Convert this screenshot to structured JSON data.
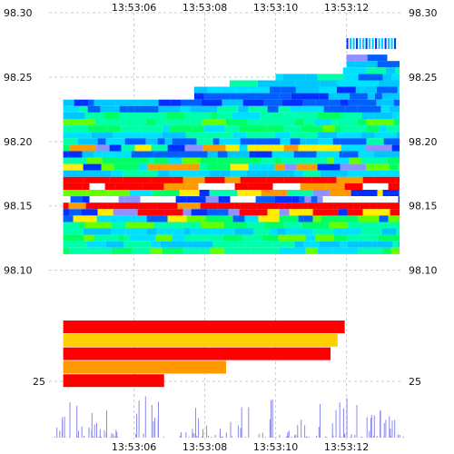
{
  "chart_data": {
    "type": "heatmap",
    "title": "",
    "xlabel": "",
    "ylabel": "",
    "x_ticks": [
      "13:53:06",
      "13:53:08",
      "13:53:10",
      "13:53:12"
    ],
    "x_tick_times_s": [
      6,
      8,
      10,
      12
    ],
    "xlim_s": [
      3.6,
      13.6
    ],
    "y_price_ticks": [
      "98.30",
      "98.25",
      "98.20",
      "98.15",
      "98.10"
    ],
    "y_price_values": [
      98.3,
      98.25,
      98.2,
      98.15,
      98.1
    ],
    "price_ylim": [
      98.08,
      98.3
    ],
    "y_bottom_panel_tick": "25",
    "heatmap_rows": [
      {
        "price": 98.265,
        "start_s": 12.0,
        "end_s": 13.5,
        "palette": "white-blue"
      },
      {
        "price": 98.26,
        "start_s": 12.0,
        "end_s": 13.5,
        "palette": "blue"
      },
      {
        "price": 98.255,
        "start_s": 11.9,
        "end_s": 13.5,
        "palette": "cyan-green"
      },
      {
        "price": 98.25,
        "start_s": 10.0,
        "end_s": 13.5,
        "palette": "blue-cyan"
      },
      {
        "price": 98.245,
        "start_s": 8.7,
        "end_s": 13.5,
        "palette": "cyan"
      },
      {
        "price": 98.24,
        "start_s": 7.7,
        "end_s": 13.5,
        "palette": "cyan-blue"
      },
      {
        "price": 98.235,
        "start_s": 7.7,
        "end_s": 13.5,
        "palette": "blue"
      },
      {
        "price": 98.23,
        "start_s": 4.0,
        "end_s": 13.5,
        "palette": "blue"
      },
      {
        "price": 98.225,
        "start_s": 4.0,
        "end_s": 13.5,
        "palette": "blue-cyan"
      },
      {
        "price": 98.22,
        "start_s": 4.0,
        "end_s": 13.5,
        "palette": "cyan-green"
      },
      {
        "price": 98.215,
        "start_s": 4.0,
        "end_s": 13.5,
        "palette": "green-cyan"
      },
      {
        "price": 98.21,
        "start_s": 4.0,
        "end_s": 13.5,
        "palette": "green"
      },
      {
        "price": 98.205,
        "start_s": 4.0,
        "end_s": 13.5,
        "palette": "cyan"
      },
      {
        "price": 98.2,
        "start_s": 4.0,
        "end_s": 13.5,
        "palette": "blue-cyan"
      },
      {
        "price": 98.195,
        "start_s": 4.0,
        "end_s": 13.5,
        "palette": "mixed"
      },
      {
        "price": 98.19,
        "start_s": 4.0,
        "end_s": 13.5,
        "palette": "cyan-blue"
      },
      {
        "price": 98.185,
        "start_s": 4.0,
        "end_s": 13.5,
        "palette": "green-cyan"
      },
      {
        "price": 98.18,
        "start_s": 4.0,
        "end_s": 13.5,
        "palette": "mixed"
      },
      {
        "price": 98.175,
        "start_s": 4.0,
        "end_s": 13.5,
        "palette": "cyan"
      },
      {
        "price": 98.17,
        "start_s": 4.0,
        "end_s": 13.5,
        "palette": "red"
      },
      {
        "price": 98.165,
        "start_s": 4.0,
        "end_s": 13.5,
        "palette": "red-white"
      },
      {
        "price": 98.16,
        "start_s": 4.0,
        "end_s": 13.5,
        "palette": "mixed"
      },
      {
        "price": 98.155,
        "start_s": 4.0,
        "end_s": 13.5,
        "palette": "white-blue"
      },
      {
        "price": 98.15,
        "start_s": 4.0,
        "end_s": 13.5,
        "palette": "red"
      },
      {
        "price": 98.145,
        "start_s": 4.0,
        "end_s": 13.5,
        "palette": "blue-red"
      },
      {
        "price": 98.14,
        "start_s": 4.0,
        "end_s": 13.5,
        "palette": "blue-green"
      },
      {
        "price": 98.135,
        "start_s": 4.0,
        "end_s": 13.5,
        "palette": "green-cyan"
      },
      {
        "price": 98.13,
        "start_s": 4.0,
        "end_s": 13.5,
        "palette": "cyan"
      },
      {
        "price": 98.125,
        "start_s": 4.0,
        "end_s": 13.5,
        "palette": "green"
      },
      {
        "price": 98.12,
        "start_s": 4.0,
        "end_s": 13.5,
        "palette": "cyan"
      },
      {
        "price": 98.115,
        "start_s": 4.0,
        "end_s": 13.5,
        "palette": "green-cyan"
      }
    ],
    "summary_bars": [
      {
        "start_s": 4.0,
        "end_s": 11.95,
        "color": "#ff0000"
      },
      {
        "start_s": 4.0,
        "end_s": 11.75,
        "color": "#ffd000"
      },
      {
        "start_s": 4.0,
        "end_s": 11.55,
        "color": "#ff0000"
      },
      {
        "start_s": 4.0,
        "end_s": 8.6,
        "color": "#ff9900"
      },
      {
        "start_s": 4.0,
        "end_s": 6.85,
        "color": "#ff0000"
      }
    ],
    "volume_ylim": [
      0,
      25
    ],
    "grid": true,
    "colors": {
      "blue": "#0030ff",
      "blue2": "#0060ff",
      "cyan": "#00e0ff",
      "cyan2": "#00c8ff",
      "teal": "#00ffaa",
      "green": "#00ff66",
      "lime": "#66ff00",
      "yellow": "#ffee00",
      "orange": "#ff9900",
      "red": "#ff0000",
      "purple": "#9090ff",
      "white": "#ffffff"
    }
  }
}
